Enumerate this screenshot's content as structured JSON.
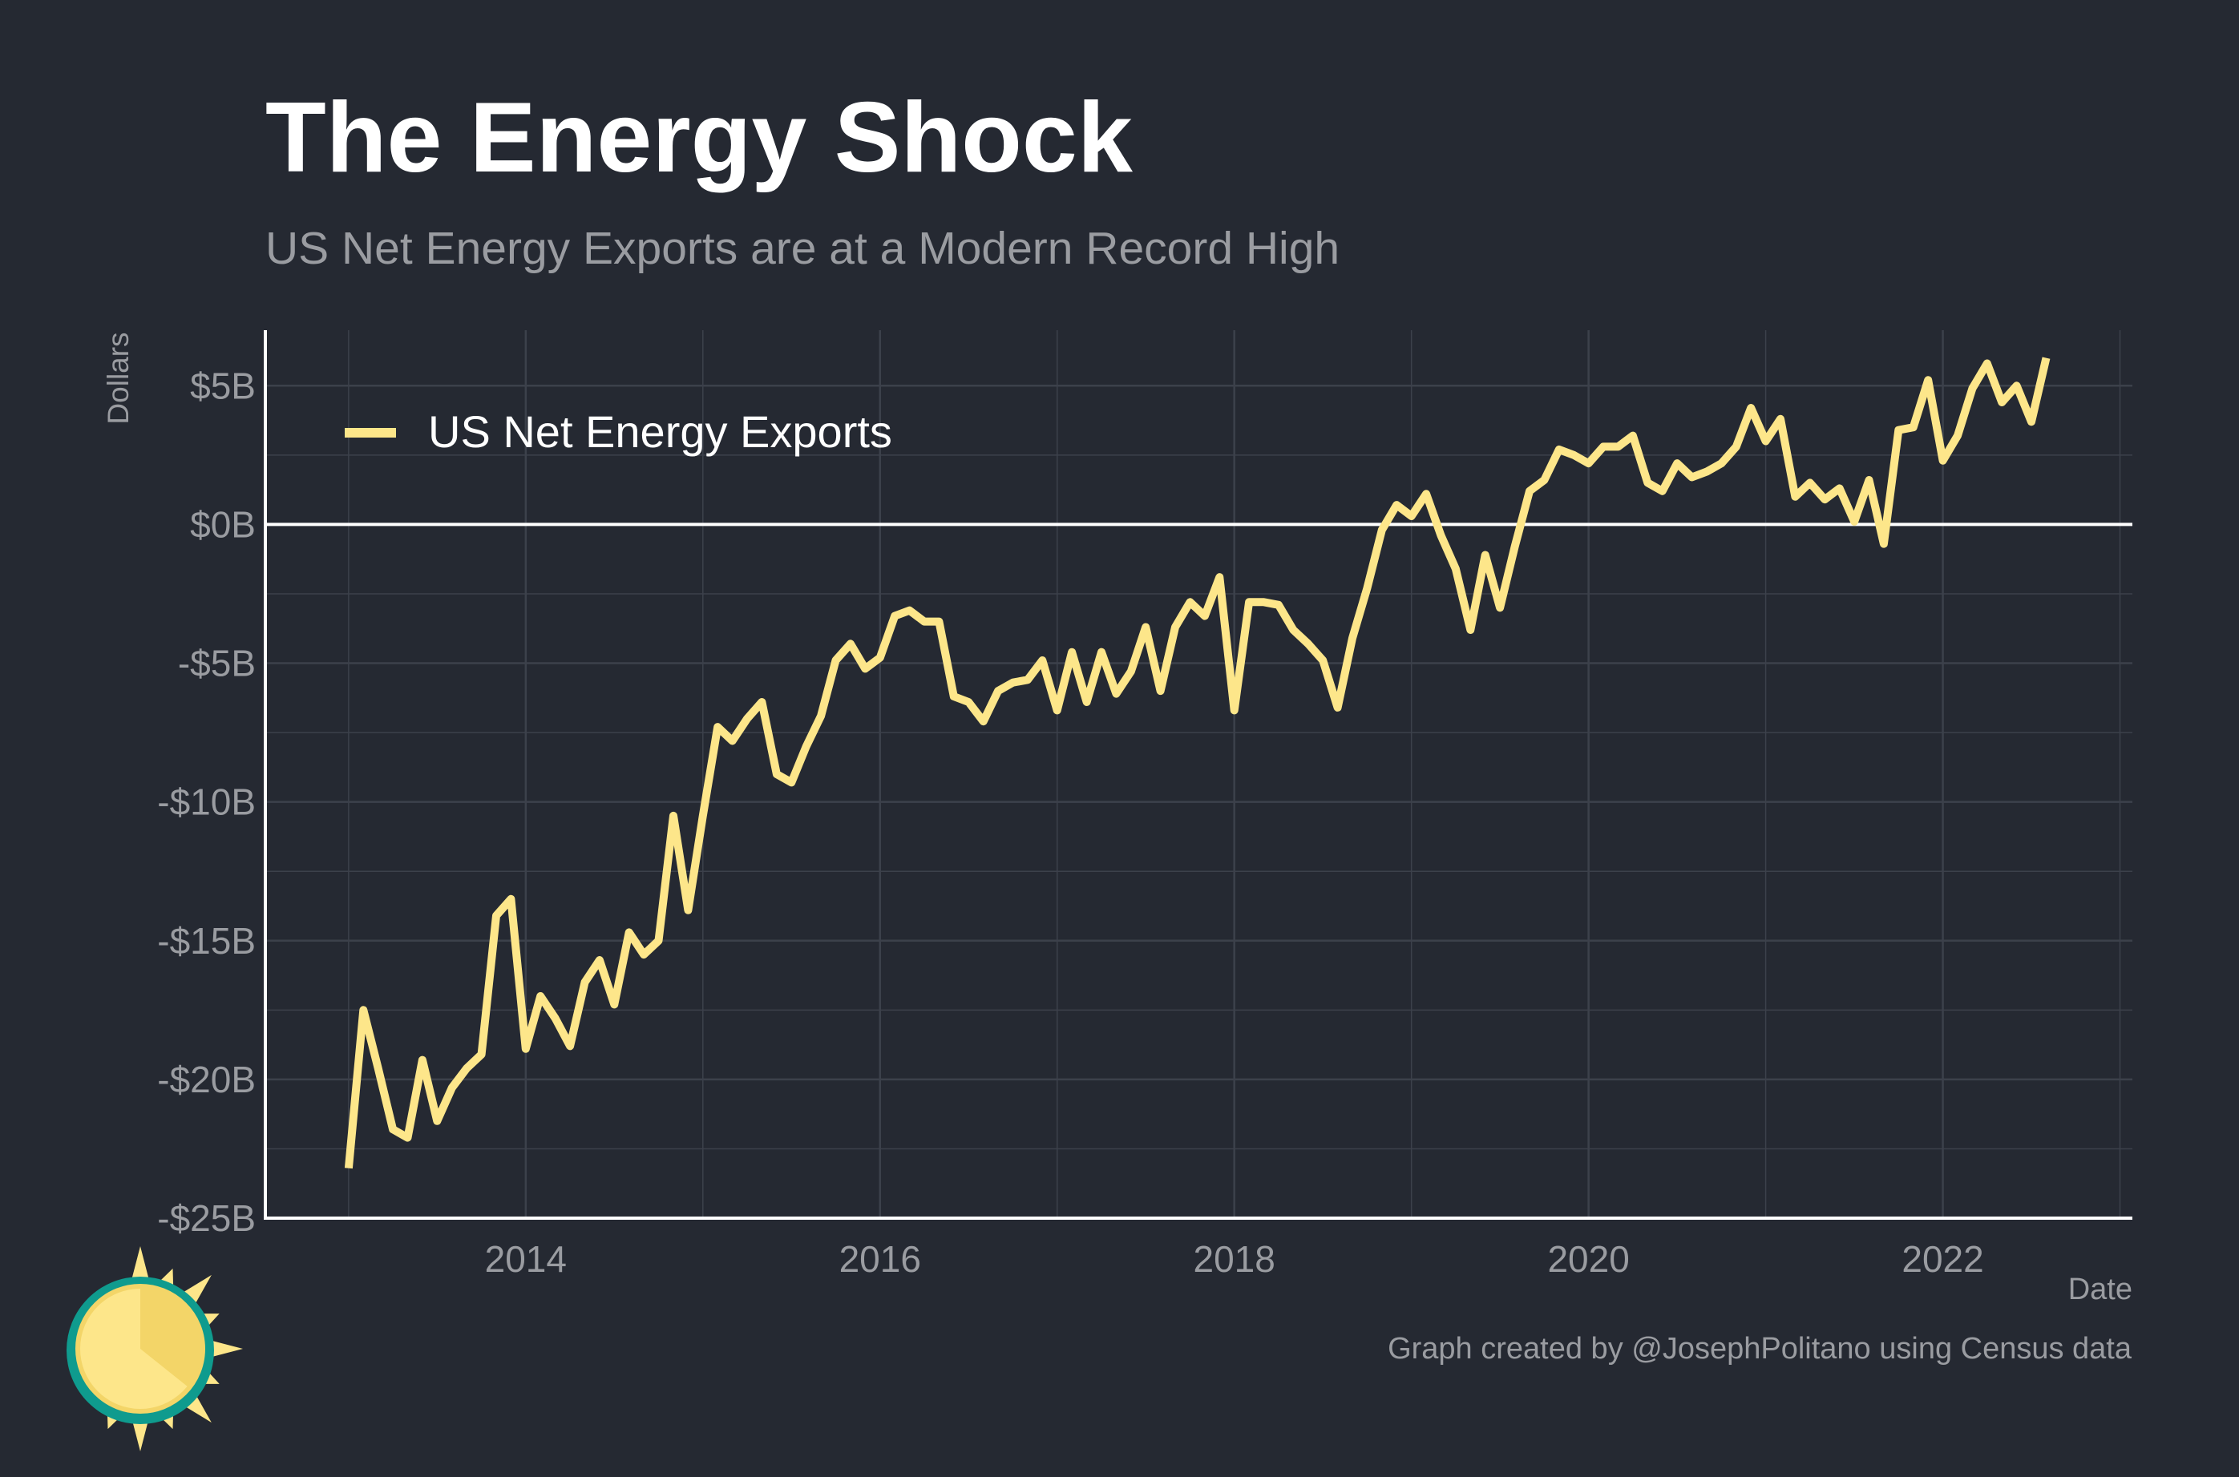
{
  "title": "The Energy Shock",
  "subtitle": "US Net Energy Exports are at a Modern Record High",
  "footer": "Graph created by @JosephPolitano using Census data",
  "colors": {
    "background": "#252932",
    "line": "#fde68a",
    "grid": "#3c414b",
    "axis": "#ffffff",
    "muted_text": "#9a9ca1",
    "logo_ring": "#0f9b8e",
    "logo_sun": "#fde68a"
  },
  "logo": {
    "icon": "sun-logo-icon"
  },
  "chart_data": {
    "type": "line",
    "xlabel": "Date",
    "ylabel": "Dollars",
    "xlim": [
      2012.53,
      2023.07
    ],
    "ylim": [
      -25,
      7
    ],
    "x_ticks": [
      2014,
      2016,
      2018,
      2020,
      2022
    ],
    "x_tick_labels": [
      "2014",
      "2016",
      "2018",
      "2020",
      "2022"
    ],
    "y_ticks": [
      -25,
      -20,
      -15,
      -10,
      -5,
      0,
      5
    ],
    "y_tick_labels": [
      "-$25B",
      "-$20B",
      "-$15B",
      "-$10B",
      "-$5B",
      "$0B",
      "$5B"
    ],
    "grid": true,
    "legend": {
      "position": "top-left",
      "entries": [
        "US Net Energy Exports"
      ]
    },
    "series": [
      {
        "name": "US Net Energy Exports",
        "unit": "billion dollars",
        "start": "2013-01",
        "frequency": "monthly",
        "values": [
          -23.2,
          -17.5,
          -19.6,
          -21.8,
          -22.1,
          -19.3,
          -21.5,
          -20.3,
          -19.6,
          -19.1,
          -14.1,
          -13.5,
          -18.9,
          -17.0,
          -17.8,
          -18.8,
          -16.5,
          -15.7,
          -17.3,
          -14.7,
          -15.5,
          -15.0,
          -10.5,
          -13.9,
          -10.5,
          -7.3,
          -7.8,
          -7.0,
          -6.4,
          -9.0,
          -9.3,
          -8.0,
          -6.9,
          -4.9,
          -4.3,
          -5.2,
          -4.8,
          -3.3,
          -3.1,
          -3.5,
          -3.5,
          -6.2,
          -6.4,
          -7.1,
          -6.0,
          -5.7,
          -5.6,
          -4.9,
          -6.7,
          -4.6,
          -6.4,
          -4.6,
          -6.1,
          -5.3,
          -3.7,
          -6.0,
          -3.7,
          -2.8,
          -3.3,
          -1.9,
          -6.7,
          -2.8,
          -2.8,
          -2.9,
          -3.8,
          -4.3,
          -4.9,
          -6.6,
          -4.1,
          -2.3,
          -0.2,
          0.7,
          0.3,
          1.1,
          -0.4,
          -1.6,
          -3.8,
          -1.1,
          -3.0,
          -0.8,
          1.2,
          1.6,
          2.7,
          2.5,
          2.2,
          2.8,
          2.8,
          3.2,
          1.5,
          1.2,
          2.2,
          1.7,
          1.9,
          2.2,
          2.8,
          4.2,
          3.0,
          3.8,
          1.0,
          1.5,
          0.9,
          1.3,
          0.1,
          1.6,
          -0.7,
          3.4,
          3.5,
          5.2,
          2.3,
          3.2,
          4.9,
          5.8,
          4.4,
          5.0,
          3.7,
          6.0
        ]
      }
    ]
  }
}
